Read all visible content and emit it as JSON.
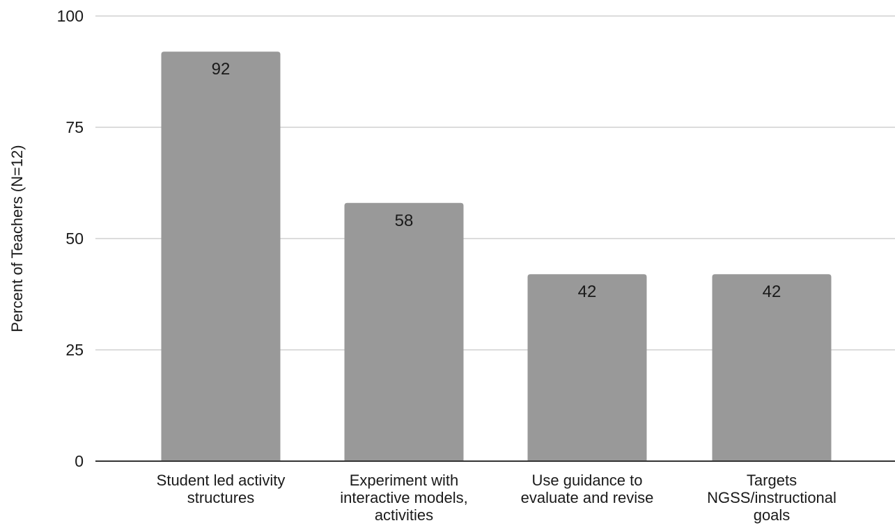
{
  "chart_data": {
    "type": "bar",
    "title": "",
    "xlabel": "",
    "ylabel": "Percent of Teachers (N=12)",
    "ylim": [
      0,
      100
    ],
    "yticks": [
      0,
      25,
      50,
      75,
      100
    ],
    "grid": true,
    "bar_color": "#999999",
    "gridline_color": "#d0d0d0",
    "categories": [
      [
        "Student led activity",
        "structures"
      ],
      [
        "Experiment with",
        "interactive models,",
        "activities"
      ],
      [
        "Use guidance to",
        "evaluate and revise"
      ],
      [
        "Targets",
        "NGSS/instructional",
        "goals"
      ]
    ],
    "values": [
      92,
      58,
      42,
      42
    ],
    "data_labels": [
      "92",
      "58",
      "42",
      "42"
    ]
  }
}
